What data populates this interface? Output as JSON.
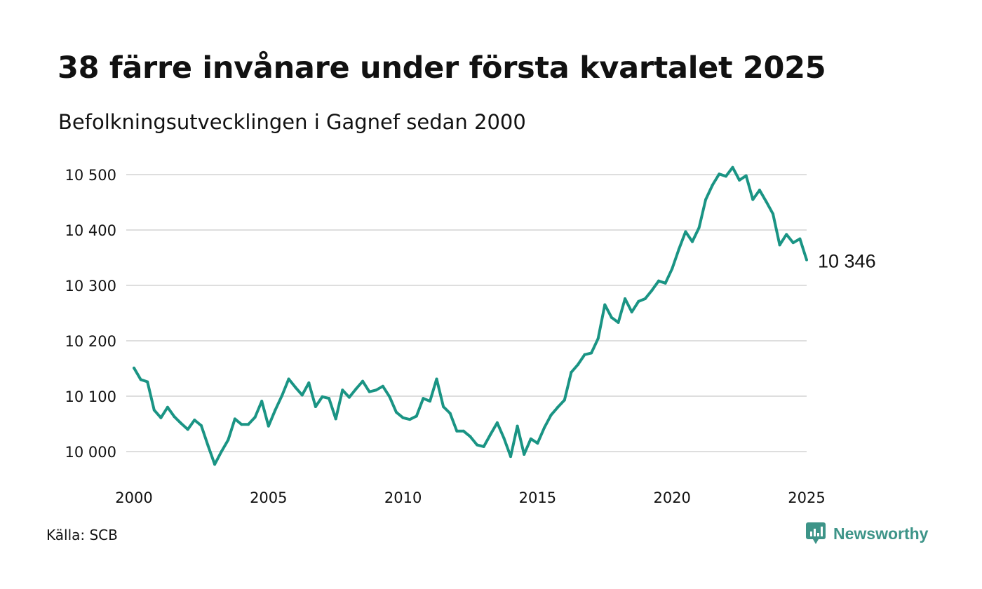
{
  "header": {
    "title": "38 färre invånare under första kvartalet 2025",
    "subtitle": "Befolkningsutvecklingen i Gagnef sedan 2000"
  },
  "footer": {
    "source": "Källa: SCB",
    "brand": "Newsworthy",
    "brand_icon": "newsworthy-logo-icon",
    "brand_color": "#3d9488"
  },
  "chart_data": {
    "type": "line",
    "title": "38 färre invånare under första kvartalet 2025",
    "subtitle": "Befolkningsutvecklingen i Gagnef sedan 2000",
    "xlabel": "",
    "ylabel": "",
    "xlim": [
      2000,
      2025
    ],
    "ylim": [
      9980,
      10520
    ],
    "x_ticks": [
      2000,
      2005,
      2010,
      2015,
      2020,
      2025
    ],
    "x_tick_labels": [
      "2000",
      "2005",
      "2010",
      "2015",
      "2020",
      "2025"
    ],
    "y_ticks": [
      10000,
      10100,
      10200,
      10300,
      10400,
      10500
    ],
    "y_tick_labels": [
      "10 000",
      "10 100",
      "10 200",
      "10 300",
      "10 400",
      "10 500"
    ],
    "grid": "horizontal",
    "line_color": "#1a9484",
    "end_label": "10 346",
    "series": [
      {
        "name": "",
        "x": [
          2000.0,
          2000.25,
          2000.5,
          2000.75,
          2001.0,
          2001.25,
          2001.5,
          2001.75,
          2002.0,
          2002.25,
          2002.5,
          2002.75,
          2003.0,
          2003.25,
          2003.5,
          2003.75,
          2004.0,
          2004.25,
          2004.5,
          2004.75,
          2005.0,
          2005.25,
          2005.5,
          2005.75,
          2006.0,
          2006.25,
          2006.5,
          2006.75,
          2007.0,
          2007.25,
          2007.5,
          2007.75,
          2008.0,
          2008.25,
          2008.5,
          2008.75,
          2009.0,
          2009.25,
          2009.5,
          2009.75,
          2010.0,
          2010.25,
          2010.5,
          2010.75,
          2011.0,
          2011.25,
          2011.5,
          2011.75,
          2012.0,
          2012.25,
          2012.5,
          2012.75,
          2013.0,
          2013.25,
          2013.5,
          2013.75,
          2014.0,
          2014.25,
          2014.5,
          2014.75,
          2015.0,
          2015.25,
          2015.5,
          2015.75,
          2016.0,
          2016.25,
          2016.5,
          2016.75,
          2017.0,
          2017.25,
          2017.5,
          2017.75,
          2018.0,
          2018.25,
          2018.5,
          2018.75,
          2019.0,
          2019.25,
          2019.5,
          2019.75,
          2020.0,
          2020.25,
          2020.5,
          2020.75,
          2021.0,
          2021.25,
          2021.5,
          2021.75,
          2022.0,
          2022.25,
          2022.5,
          2022.75,
          2023.0,
          2023.25,
          2023.5,
          2023.75,
          2024.0,
          2024.25,
          2024.5,
          2024.75,
          2025.0
        ],
        "values": [
          10151,
          10130,
          10126,
          10075,
          10061,
          10080,
          10063,
          10051,
          10040,
          10057,
          10047,
          10011,
          9977,
          10000,
          10021,
          10059,
          10049,
          10049,
          10062,
          10091,
          10046,
          10075,
          10101,
          10131,
          10116,
          10102,
          10124,
          10081,
          10099,
          10096,
          10059,
          10111,
          10098,
          10113,
          10127,
          10108,
          10111,
          10118,
          10099,
          10071,
          10061,
          10058,
          10064,
          10096,
          10091,
          10131,
          10081,
          10069,
          10037,
          10037,
          10027,
          10012,
          10009,
          10031,
          10052,
          10024,
          9991,
          10046,
          9995,
          10023,
          10015,
          10043,
          10066,
          10080,
          10093,
          10143,
          10157,
          10175,
          10178,
          10204,
          10265,
          10242,
          10233,
          10276,
          10252,
          10271,
          10276,
          10291,
          10308,
          10304,
          10330,
          10365,
          10397,
          10379,
          10404,
          10455,
          10481,
          10501,
          10497,
          10513,
          10490,
          10498,
          10455,
          10472,
          10451,
          10429,
          10373,
          10392,
          10377,
          10384,
          10346
        ]
      }
    ]
  }
}
